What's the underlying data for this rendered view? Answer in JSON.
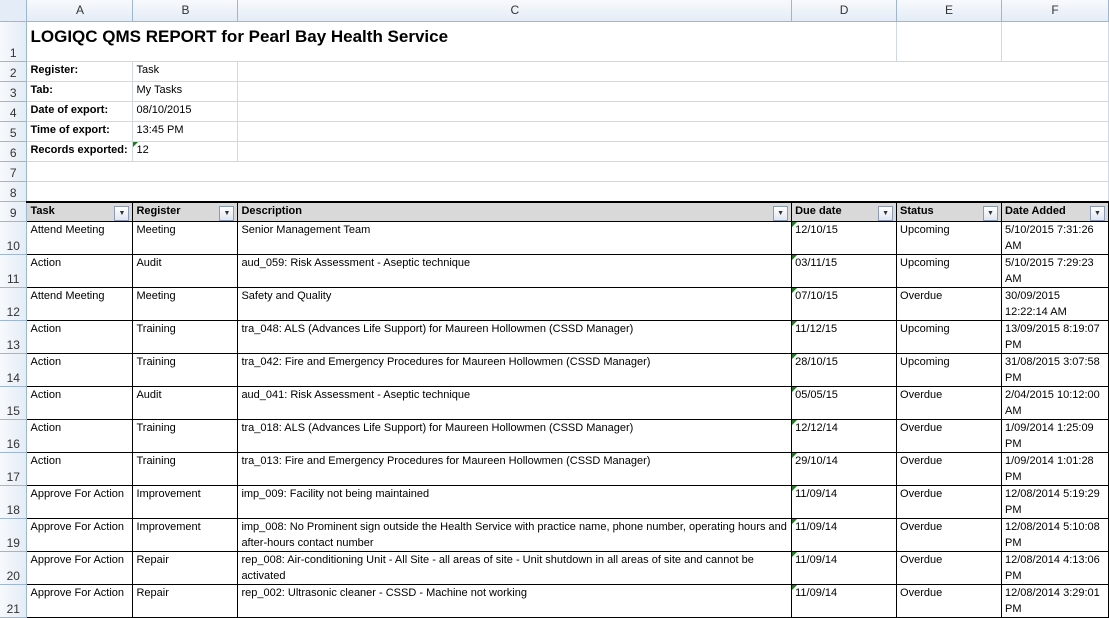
{
  "columns": [
    "A",
    "B",
    "C",
    "D",
    "E",
    "F"
  ],
  "row_numbers": [
    "1",
    "2",
    "3",
    "4",
    "5",
    "6",
    "7",
    "8",
    "9",
    "10",
    "11",
    "12",
    "13",
    "14",
    "15",
    "16",
    "17",
    "18",
    "19",
    "20",
    "21"
  ],
  "title": "LOGIQC QMS REPORT for Pearl Bay Health Service",
  "meta": [
    {
      "label": "Register:",
      "value": "Task"
    },
    {
      "label": "Tab:",
      "value": "My Tasks"
    },
    {
      "label": "Date of export:",
      "value": "08/10/2015"
    },
    {
      "label": "Time of export:",
      "value": "13:45 PM"
    },
    {
      "label": "Records exported:",
      "value": "12"
    }
  ],
  "headers": [
    "Task",
    "Register",
    "Description",
    "Due date",
    "Status",
    "Date Added"
  ],
  "rows": [
    [
      "Attend Meeting",
      "Meeting",
      "Senior Management Team",
      "12/10/15",
      "Upcoming",
      "5/10/2015 7:31:26 AM"
    ],
    [
      "Action",
      "Audit",
      "aud_059: Risk Assessment - Aseptic technique",
      "03/11/15",
      "Upcoming",
      "5/10/2015 7:29:23 AM"
    ],
    [
      "Attend Meeting",
      "Meeting",
      "Safety and Quality",
      "07/10/15",
      "Overdue",
      "30/09/2015 12:22:14 AM"
    ],
    [
      "Action",
      "Training",
      "tra_048: ALS (Advances Life Support) for Maureen Hollowmen (CSSD Manager)",
      "11/12/15",
      "Upcoming",
      "13/09/2015 8:19:07 PM"
    ],
    [
      "Action",
      "Training",
      "tra_042: Fire and Emergency Procedures for Maureen Hollowmen (CSSD Manager)",
      "28/10/15",
      "Upcoming",
      "31/08/2015 3:07:58 PM"
    ],
    [
      "Action",
      "Audit",
      "aud_041: Risk Assessment - Aseptic technique",
      "05/05/15",
      "Overdue",
      "2/04/2015 10:12:00 AM"
    ],
    [
      "Action",
      "Training",
      "tra_018: ALS (Advances Life Support) for Maureen Hollowmen (CSSD Manager)",
      "12/12/14",
      "Overdue",
      "1/09/2014 1:25:09 PM"
    ],
    [
      "Action",
      "Training",
      "tra_013: Fire and Emergency Procedures for Maureen Hollowmen (CSSD Manager)",
      "29/10/14",
      "Overdue",
      "1/09/2014 1:01:28 PM"
    ],
    [
      "Approve For Action",
      "Improvement",
      "imp_009: Facility not being maintained",
      "11/09/14",
      "Overdue",
      "12/08/2014 5:19:29 PM"
    ],
    [
      "Approve For Action",
      "Improvement",
      "imp_008: No Prominent sign outside the Health Service with practice name, phone number, operating hours and after-hours contact number",
      "11/09/14",
      "Overdue",
      "12/08/2014 5:10:08 PM"
    ],
    [
      "Approve For Action",
      "Repair",
      "rep_008: Air-conditioning Unit - All Site  - all areas of site - Unit shutdown in all areas of site and cannot be activated",
      "11/09/14",
      "Overdue",
      "12/08/2014 4:13:06 PM"
    ],
    [
      "Approve For Action",
      "Repair",
      "rep_002: Ultrasonic cleaner - CSSD - Machine not working",
      "11/09/14",
      "Overdue",
      "12/08/2014 3:29:01 PM"
    ]
  ]
}
